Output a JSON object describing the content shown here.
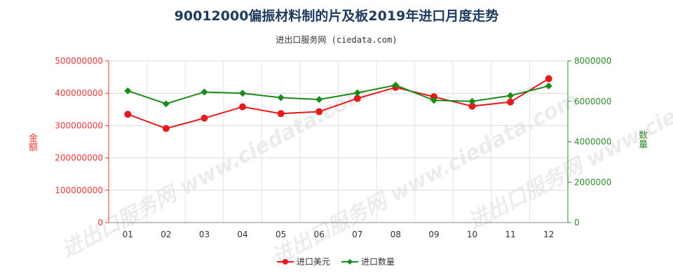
{
  "title": "90012000偏振材料制的片及板2019年进口月度走势",
  "subtitle": "进出口服务网 (ciedata.com)",
  "watermark": "进出口服务网 www.ciedata.com",
  "colors": {
    "amount": "#e8191c",
    "quantity": "#1a8a1a",
    "left_axis": "#e53935",
    "right_axis": "#2e8b2e"
  },
  "chart_data": {
    "type": "line",
    "title": "90012000偏振材料制的片及板2019年进口月度走势",
    "categories": [
      "01",
      "02",
      "03",
      "04",
      "05",
      "06",
      "07",
      "08",
      "09",
      "10",
      "11",
      "12"
    ],
    "ylabel_left": "金额",
    "ylabel_right": "数量",
    "ylim_left": [
      0,
      500000000
    ],
    "ylim_right": [
      0,
      8000000
    ],
    "yticks_left": [
      "0",
      "100000000",
      "200000000",
      "300000000",
      "400000000",
      "500000000"
    ],
    "yticks_right": [
      "0",
      "2000000",
      "4000000",
      "6000000",
      "8000000"
    ],
    "series": [
      {
        "name": "进口美元",
        "axis": "left",
        "marker": "circle",
        "values": [
          335000000,
          291000000,
          323000000,
          358000000,
          337000000,
          343000000,
          384000000,
          418000000,
          389000000,
          360000000,
          373000000,
          445000000
        ]
      },
      {
        "name": "进口数量",
        "axis": "right",
        "marker": "diamond",
        "values": [
          6520000,
          5880000,
          6460000,
          6400000,
          6180000,
          6090000,
          6420000,
          6800000,
          6050000,
          6000000,
          6280000,
          6760000
        ]
      }
    ],
    "legend": [
      "进口美元",
      "进口数量"
    ],
    "legend_position": "bottom",
    "grid": true
  }
}
